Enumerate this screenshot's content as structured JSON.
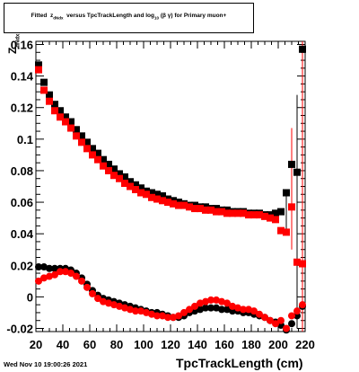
{
  "chart_data": {
    "type": "scatter",
    "title_main": "Fitted",
    "title_z": "z",
    "title_sub1": "dNdx",
    "title_mid": "versus TpcTrackLength and log",
    "title_sub2": "10",
    "title_tail": "(β γ) for Primary muon+",
    "xlabel": "TpcTrackLength (cm)",
    "ylabel_main": "Z",
    "ylabel_sub": "dNdx",
    "xlim": [
      20,
      220
    ],
    "ylim": [
      -0.022,
      0.162
    ],
    "xticks": [
      20,
      40,
      60,
      80,
      100,
      120,
      140,
      160,
      180,
      200,
      220
    ],
    "yticks": [
      -0.02,
      0,
      0.02,
      0.04,
      0.06,
      0.08,
      0.1,
      0.12,
      0.14,
      0.16
    ],
    "ytick_labels": [
      "-0.02",
      "0",
      "0.02",
      "0.04",
      "0.06",
      "0.08",
      "0.1",
      "0.12",
      "0.14",
      "0.16"
    ],
    "series": [
      {
        "color": "#000000",
        "marker": "square",
        "x": [
          22,
          26,
          30,
          34,
          38,
          42,
          46,
          50,
          54,
          58,
          62,
          66,
          70,
          74,
          78,
          82,
          86,
          90,
          94,
          98,
          102,
          106,
          110,
          114,
          118,
          122,
          126,
          130,
          134,
          138,
          142,
          146,
          150,
          154,
          158,
          162,
          166,
          170,
          174,
          178,
          182,
          186,
          190,
          194,
          198,
          202,
          206,
          210,
          214,
          218
        ],
        "y": [
          0.147,
          0.136,
          0.128,
          0.122,
          0.118,
          0.114,
          0.111,
          0.106,
          0.102,
          0.098,
          0.094,
          0.091,
          0.087,
          0.084,
          0.081,
          0.078,
          0.076,
          0.073,
          0.071,
          0.069,
          0.067,
          0.066,
          0.065,
          0.064,
          0.062,
          0.061,
          0.06,
          0.059,
          0.058,
          0.058,
          0.057,
          0.057,
          0.056,
          0.056,
          0.055,
          0.055,
          0.054,
          0.054,
          0.054,
          0.053,
          0.053,
          0.053,
          0.052,
          0.052,
          0.053,
          0.054,
          0.066,
          0.084,
          0.079,
          0.157
        ]
      },
      {
        "color": "#ff0000",
        "marker": "square",
        "x": [
          22,
          26,
          30,
          34,
          38,
          42,
          46,
          50,
          54,
          58,
          62,
          66,
          70,
          74,
          78,
          82,
          86,
          90,
          94,
          98,
          102,
          106,
          110,
          114,
          118,
          122,
          126,
          130,
          134,
          138,
          142,
          146,
          150,
          154,
          158,
          162,
          166,
          170,
          174,
          178,
          182,
          186,
          190,
          194,
          198,
          202,
          206,
          210,
          214,
          218
        ],
        "y": [
          0.144,
          0.131,
          0.124,
          0.118,
          0.114,
          0.111,
          0.107,
          0.102,
          0.098,
          0.094,
          0.09,
          0.087,
          0.083,
          0.08,
          0.077,
          0.075,
          0.072,
          0.07,
          0.068,
          0.066,
          0.065,
          0.063,
          0.062,
          0.061,
          0.06,
          0.059,
          0.058,
          0.058,
          0.057,
          0.056,
          0.056,
          0.055,
          0.055,
          0.054,
          0.054,
          0.053,
          0.053,
          0.053,
          0.053,
          0.052,
          0.052,
          0.052,
          0.051,
          0.05,
          0.049,
          0.042,
          0.041,
          0.057,
          0.022,
          0.021
        ]
      },
      {
        "color": "#000000",
        "marker": "circle",
        "x": [
          22,
          26,
          30,
          34,
          38,
          42,
          46,
          50,
          54,
          58,
          62,
          66,
          70,
          74,
          78,
          82,
          86,
          90,
          94,
          98,
          102,
          106,
          110,
          114,
          118,
          122,
          126,
          130,
          134,
          138,
          142,
          146,
          150,
          154,
          158,
          162,
          166,
          170,
          174,
          178,
          182,
          186,
          190,
          194,
          198,
          202,
          206,
          210,
          214,
          218
        ],
        "y": [
          0.019,
          0.019,
          0.018,
          0.018,
          0.018,
          0.018,
          0.017,
          0.015,
          0.012,
          0.008,
          0.004,
          0.001,
          -0.001,
          -0.002,
          -0.003,
          -0.004,
          -0.005,
          -0.006,
          -0.007,
          -0.008,
          -0.009,
          -0.01,
          -0.01,
          -0.011,
          -0.012,
          -0.013,
          -0.013,
          -0.012,
          -0.01,
          -0.009,
          -0.008,
          -0.007,
          -0.007,
          -0.007,
          -0.008,
          -0.008,
          -0.009,
          -0.009,
          -0.01,
          -0.01,
          -0.011,
          -0.012,
          -0.013,
          -0.015,
          -0.016,
          -0.018,
          -0.021,
          -0.017,
          -0.012,
          -0.006
        ]
      },
      {
        "color": "#ff0000",
        "marker": "circle",
        "x": [
          22,
          26,
          30,
          34,
          38,
          42,
          46,
          50,
          54,
          58,
          62,
          66,
          70,
          74,
          78,
          82,
          86,
          90,
          94,
          98,
          102,
          106,
          110,
          114,
          118,
          122,
          126,
          130,
          134,
          138,
          142,
          146,
          150,
          154,
          158,
          162,
          166,
          170,
          174,
          178,
          182,
          186,
          190,
          194,
          198,
          202,
          206,
          210,
          214,
          218
        ],
        "y": [
          0.01,
          0.012,
          0.013,
          0.014,
          0.016,
          0.016,
          0.015,
          0.013,
          0.01,
          0.006,
          0.002,
          -0.001,
          -0.003,
          -0.004,
          -0.005,
          -0.006,
          -0.007,
          -0.008,
          -0.009,
          -0.009,
          -0.01,
          -0.011,
          -0.012,
          -0.012,
          -0.013,
          -0.013,
          -0.012,
          -0.01,
          -0.008,
          -0.006,
          -0.004,
          -0.003,
          -0.002,
          -0.002,
          -0.003,
          -0.004,
          -0.006,
          -0.007,
          -0.008,
          -0.008,
          -0.009,
          -0.011,
          -0.013,
          -0.015,
          -0.017,
          -0.015,
          -0.02,
          -0.012,
          -0.009,
          -0.005
        ]
      }
    ],
    "error_bars": [
      {
        "x": 206,
        "ylow": 0.04,
        "yhigh": 0.068,
        "color": "#000000"
      },
      {
        "x": 210,
        "ylow": 0.03,
        "yhigh": 0.107,
        "color": "#ff0000"
      },
      {
        "x": 214,
        "ylow": -0.02,
        "yhigh": 0.128,
        "color": "#000000"
      },
      {
        "x": 218,
        "ylow": -0.022,
        "yhigh": 0.162,
        "color": "#ff0000"
      }
    ]
  },
  "footer": {
    "datestamp": "Wed Nov 10 19:00:26 2021"
  }
}
